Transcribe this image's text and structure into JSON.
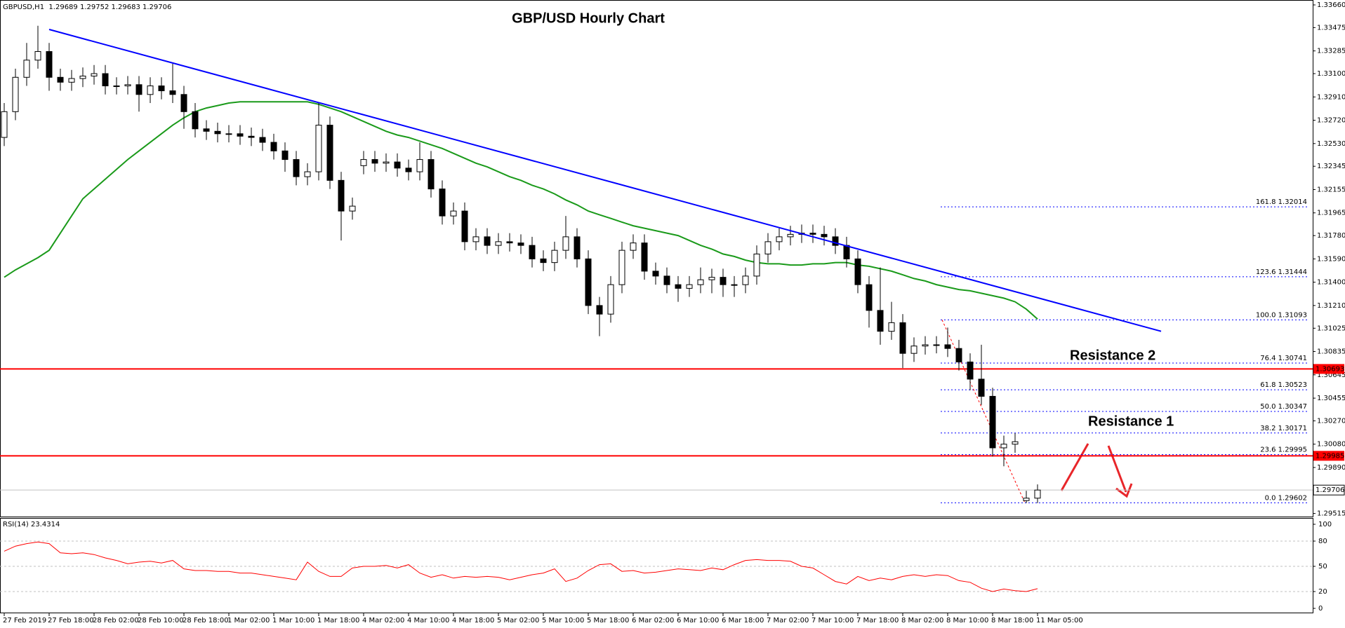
{
  "chart_data": {
    "type": "candlestick",
    "title": "GBP/USD Hourly Chart",
    "header": "GBPUSD,H1  1.29689 1.29752 1.29683 1.29706",
    "categories": [
      "27 Feb 2019",
      null,
      null,
      null,
      "27 Feb 18:00",
      null,
      null,
      null,
      "28 Feb 02:00",
      null,
      null,
      null,
      "28 Feb 10:00",
      null,
      null,
      null,
      "28 Feb 18:00",
      null,
      null,
      null,
      "1 Mar 02:00",
      null,
      null,
      null,
      "1 Mar 10:00",
      null,
      null,
      null,
      "1 Mar 18:00",
      null,
      null,
      null,
      "4 Mar 02:00",
      null,
      null,
      null,
      "4 Mar 10:00",
      null,
      null,
      null,
      "4 Mar 18:00",
      null,
      null,
      null,
      "5 Mar 02:00",
      null,
      null,
      null,
      "5 Mar 10:00",
      null,
      null,
      null,
      "5 Mar 18:00",
      null,
      null,
      null,
      "6 Mar 02:00",
      null,
      null,
      null,
      "6 Mar 10:00",
      null,
      null,
      null,
      "6 Mar 18:00",
      null,
      null,
      null,
      "7 Mar 02:00",
      null,
      null,
      null,
      "7 Mar 10:00",
      null,
      null,
      null,
      "7 Mar 18:00",
      null,
      null,
      null,
      "8 Mar 02:00",
      null,
      null,
      null,
      "8 Mar 10:00",
      null,
      null,
      null,
      "8 Mar 18:00",
      null,
      null,
      null,
      "11 Mar 05:00"
    ],
    "open": [
      1.3258,
      1.3279,
      1.3307,
      1.3321,
      1.3328,
      1.3307,
      1.3303,
      1.3306,
      1.3308,
      1.331,
      1.33,
      1.33,
      1.3301,
      1.3293,
      1.33,
      1.3296,
      1.3293,
      1.3279,
      1.3265,
      1.3263,
      1.3261,
      1.3261,
      1.3259,
      1.3258,
      1.3254,
      1.3247,
      1.324,
      1.3226,
      1.323,
      1.3268,
      1.3223,
      1.3198,
      1.3235,
      1.324,
      1.3237,
      1.3238,
      1.3233,
      1.323,
      1.324,
      1.3216,
      1.3194,
      1.3198,
      1.3173,
      1.3177,
      1.317,
      1.3173,
      1.3172,
      1.317,
      1.3159,
      1.3156,
      1.3166,
      1.3177,
      1.3159,
      1.3121,
      1.3114,
      1.3138,
      1.3166,
      1.3172,
      1.3149,
      1.3145,
      1.3138,
      1.3135,
      1.3138,
      1.3142,
      1.3144,
      1.3138,
      1.3138,
      1.3145,
      1.3163,
      1.3173,
      1.3177,
      1.3179,
      1.318,
      1.3179,
      1.3177,
      1.317,
      1.3159,
      1.3138,
      1.3117,
      1.31,
      1.3107,
      1.3082,
      1.3088,
      1.3089,
      1.3089,
      1.3086,
      1.3075,
      1.3061,
      1.3047,
      1.3005,
      1.3008,
      1.2962,
      1.2964
    ],
    "high": [
      1.3286,
      1.3314,
      1.3335,
      1.3349,
      1.3335,
      1.3314,
      1.3313,
      1.3315,
      1.3317,
      1.3317,
      1.3307,
      1.3308,
      1.3308,
      1.3307,
      1.3307,
      1.3318,
      1.33,
      1.3286,
      1.3272,
      1.327,
      1.3268,
      1.3268,
      1.3266,
      1.3265,
      1.3261,
      1.3254,
      1.3247,
      1.3237,
      1.3286,
      1.3275,
      1.323,
      1.3209,
      1.3247,
      1.3247,
      1.3245,
      1.3245,
      1.324,
      1.3254,
      1.3247,
      1.3223,
      1.3205,
      1.3205,
      1.3184,
      1.3184,
      1.318,
      1.318,
      1.3179,
      1.3177,
      1.3166,
      1.3173,
      1.3194,
      1.3184,
      1.3166,
      1.3128,
      1.3145,
      1.3173,
      1.3179,
      1.3179,
      1.3156,
      1.3152,
      1.3145,
      1.3145,
      1.3152,
      1.3151,
      1.3151,
      1.3145,
      1.3152,
      1.317,
      1.318,
      1.3184,
      1.3186,
      1.3187,
      1.3187,
      1.3186,
      1.3184,
      1.3177,
      1.3166,
      1.3145,
      1.3152,
      1.3124,
      1.3114,
      1.3095,
      1.3096,
      1.3096,
      1.3103,
      1.3093,
      1.3082,
      1.3089,
      1.3054,
      1.3015,
      1.3017,
      1.297,
      1.29752
    ],
    "low": [
      1.3251,
      1.3272,
      1.33,
      1.3314,
      1.3296,
      1.3296,
      1.3296,
      1.3299,
      1.3301,
      1.3293,
      1.3293,
      1.3293,
      1.3279,
      1.3286,
      1.3289,
      1.3286,
      1.3265,
      1.3258,
      1.3256,
      1.3254,
      1.3254,
      1.3252,
      1.3251,
      1.3247,
      1.324,
      1.323,
      1.3219,
      1.3219,
      1.3223,
      1.3216,
      1.3174,
      1.3191,
      1.3228,
      1.323,
      1.323,
      1.3226,
      1.3223,
      1.3223,
      1.3209,
      1.3187,
      1.3187,
      1.3166,
      1.3166,
      1.3163,
      1.3163,
      1.3165,
      1.3163,
      1.3152,
      1.3149,
      1.3149,
      1.3159,
      1.3152,
      1.3114,
      1.3096,
      1.3107,
      1.3131,
      1.3159,
      1.3142,
      1.3138,
      1.3131,
      1.3124,
      1.3128,
      1.3131,
      1.3131,
      1.3128,
      1.3128,
      1.3131,
      1.3138,
      1.3156,
      1.3166,
      1.317,
      1.3172,
      1.3172,
      1.317,
      1.3163,
      1.3152,
      1.3131,
      1.3103,
      1.3089,
      1.3093,
      1.307,
      1.3075,
      1.3081,
      1.3082,
      1.3079,
      1.3068,
      1.3052,
      1.304,
      1.2998,
      1.299,
      1.3001,
      1.296,
      1.296
    ],
    "close": [
      1.3279,
      1.3307,
      1.3321,
      1.3328,
      1.3307,
      1.3303,
      1.3306,
      1.3308,
      1.331,
      1.33,
      1.33,
      1.3301,
      1.3293,
      1.33,
      1.3296,
      1.3293,
      1.3279,
      1.3265,
      1.3263,
      1.3261,
      1.3261,
      1.3259,
      1.3258,
      1.3254,
      1.3247,
      1.324,
      1.3226,
      1.323,
      1.3268,
      1.3223,
      1.3198,
      1.3202,
      1.324,
      1.3237,
      1.3238,
      1.3233,
      1.323,
      1.324,
      1.3216,
      1.3194,
      1.3198,
      1.3173,
      1.3177,
      1.317,
      1.3173,
      1.3172,
      1.317,
      1.3159,
      1.3156,
      1.3166,
      1.3177,
      1.3159,
      1.3121,
      1.3114,
      1.3138,
      1.3166,
      1.3172,
      1.3149,
      1.3145,
      1.3138,
      1.3135,
      1.3138,
      1.3142,
      1.3144,
      1.3138,
      1.3138,
      1.3145,
      1.3163,
      1.3173,
      1.3177,
      1.3179,
      1.318,
      1.3179,
      1.3177,
      1.317,
      1.3159,
      1.3138,
      1.3117,
      1.31,
      1.3107,
      1.3082,
      1.3088,
      1.3089,
      1.3089,
      1.3086,
      1.3075,
      1.3061,
      1.3047,
      1.3005,
      1.3008,
      1.301,
      1.2964,
      1.29706
    ],
    "up_color": "#ffffff",
    "down_color": "#000000",
    "ma": {
      "color": "#1a9a1a",
      "values": [
        1.3144,
        1.315,
        1.3155,
        1.316,
        1.3166,
        1.318,
        1.3194,
        1.3208,
        1.3216,
        1.3224,
        1.3232,
        1.324,
        1.3247,
        1.3254,
        1.3261,
        1.3268,
        1.3274,
        1.3279,
        1.3282,
        1.3284,
        1.3286,
        1.3287,
        1.3287,
        1.3287,
        1.3287,
        1.3287,
        1.3287,
        1.3287,
        1.3285,
        1.3282,
        1.3279,
        1.3275,
        1.3271,
        1.3267,
        1.3263,
        1.326,
        1.3258,
        1.3255,
        1.3252,
        1.3249,
        1.3245,
        1.3241,
        1.3237,
        1.3234,
        1.323,
        1.3226,
        1.3223,
        1.3219,
        1.3216,
        1.3212,
        1.3207,
        1.3203,
        1.3198,
        1.3195,
        1.3192,
        1.3189,
        1.3186,
        1.3184,
        1.3182,
        1.318,
        1.3178,
        1.3174,
        1.317,
        1.3167,
        1.3163,
        1.3161,
        1.3158,
        1.3156,
        1.3155,
        1.3155,
        1.3154,
        1.3154,
        1.3155,
        1.3155,
        1.3156,
        1.3156,
        1.3154,
        1.3153,
        1.3151,
        1.3149,
        1.3146,
        1.3143,
        1.3141,
        1.3138,
        1.3136,
        1.3134,
        1.3133,
        1.3131,
        1.3129,
        1.3127,
        1.3124,
        1.3118,
        1.311
      ]
    },
    "trendline": {
      "color": "#0000ff",
      "x": [
        4,
        103
      ],
      "y": [
        1.3346,
        1.31
      ]
    },
    "ylim": [
      1.2949,
      1.337
    ],
    "yticks": [
      {
        "value": 1.3366,
        "label": "1.33660"
      },
      {
        "value": 1.33475,
        "label": "1.33475"
      },
      {
        "value": 1.33285,
        "label": "1.33285"
      },
      {
        "value": 1.331,
        "label": "1.33100"
      },
      {
        "value": 1.3291,
        "label": "1.32910"
      },
      {
        "value": 1.3272,
        "label": "1.32720"
      },
      {
        "value": 1.3253,
        "label": "1.32530"
      },
      {
        "value": 1.32345,
        "label": "1.32345"
      },
      {
        "value": 1.32155,
        "label": "1.32155"
      },
      {
        "value": 1.31965,
        "label": "1.31965"
      },
      {
        "value": 1.3178,
        "label": "1.31780"
      },
      {
        "value": 1.3159,
        "label": "1.31590"
      },
      {
        "value": 1.314,
        "label": "1.31400"
      },
      {
        "value": 1.3121,
        "label": "1.31210"
      },
      {
        "value": 1.31025,
        "label": "1.31025"
      },
      {
        "value": 1.30835,
        "label": "1.30835"
      },
      {
        "value": 1.30645,
        "label": "1.30645"
      },
      {
        "value": 1.30455,
        "label": "1.30455"
      },
      {
        "value": 1.3027,
        "label": "1.30270"
      },
      {
        "value": 1.3008,
        "label": "1.30080"
      },
      {
        "value": 1.2989,
        "label": "1.29890"
      },
      {
        "value": 1.29515,
        "label": "1.29515"
      }
    ],
    "levels": [
      {
        "value": 1.30693,
        "label": "1.30693",
        "color": "#ff0000"
      },
      {
        "value": 1.29985,
        "label": "1.29985",
        "color": "#ff0000"
      }
    ],
    "current_price": {
      "value": 1.29706,
      "label": "1.29706",
      "color": "#c0c0c0"
    },
    "fib": {
      "color": "#0000ff",
      "anchor_color": "#ff0000",
      "levels": [
        {
          "value": 1.32014,
          "label": "161.8 1.32014"
        },
        {
          "value": 1.31444,
          "label": "123.6 1.31444"
        },
        {
          "value": 1.31093,
          "label": "100.0 1.31093"
        },
        {
          "value": 1.30741,
          "label": "76.4 1.30741"
        },
        {
          "value": 1.30523,
          "label": "61.8 1.30523"
        },
        {
          "value": 1.30347,
          "label": "50.0 1.30347"
        },
        {
          "value": 1.30171,
          "label": "38.2 1.30171"
        },
        {
          "value": 1.29995,
          "label": "23.6 1.29995"
        },
        {
          "value": 1.29602,
          "label": "0.0 1.29602"
        }
      ]
    },
    "annotations": [
      {
        "text": "Resistance 2",
        "color": "#e8262a"
      },
      {
        "text": "Resistance 1",
        "color": "#e8262a"
      }
    ],
    "rsi": {
      "label": "RSI(14) 23.4314",
      "color": "#ff0000",
      "values": [
        68,
        74,
        77,
        79,
        77,
        66,
        65,
        66,
        64,
        60,
        57,
        53,
        55,
        56,
        54,
        57,
        47,
        45,
        45,
        44,
        44,
        42,
        42,
        40,
        38,
        36,
        34,
        55,
        44,
        38,
        38,
        48,
        50,
        50,
        51,
        48,
        52,
        42,
        37,
        40,
        36,
        38,
        37,
        38,
        37,
        34,
        37,
        40,
        42,
        47,
        32,
        36,
        45,
        52,
        53,
        44,
        45,
        42,
        43,
        45,
        47,
        46,
        45,
        48,
        46,
        52,
        57,
        58,
        57,
        57,
        56,
        50,
        48,
        40,
        32,
        29,
        38,
        33,
        36,
        34,
        38,
        40,
        38,
        40,
        39,
        33,
        31,
        24,
        20,
        23,
        21,
        20,
        23.4314
      ],
      "ylim": [
        0,
        100
      ],
      "yticks": [
        100,
        80,
        50,
        20,
        0
      ],
      "levels": [
        80,
        50,
        20
      ]
    }
  }
}
